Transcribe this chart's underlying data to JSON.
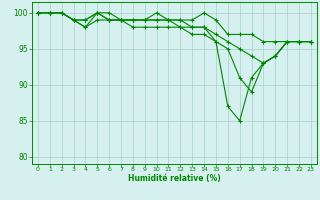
{
  "xlabel": "Humidité relative (%)",
  "background_color": "#d6f0f0",
  "grid_color": "#a8cfc8",
  "line_color": "#008800",
  "spine_color": "#008800",
  "xlim": [
    -0.5,
    23.5
  ],
  "ylim": [
    79,
    101.5
  ],
  "yticks": [
    80,
    85,
    90,
    95,
    100
  ],
  "xticks": [
    0,
    1,
    2,
    3,
    4,
    5,
    6,
    7,
    8,
    9,
    10,
    11,
    12,
    13,
    14,
    15,
    16,
    17,
    18,
    19,
    20,
    21,
    22,
    23
  ],
  "series": [
    [
      100,
      100,
      100,
      99,
      98,
      100,
      100,
      99,
      99,
      99,
      100,
      99,
      99,
      99,
      100,
      99,
      97,
      97,
      97,
      96,
      96,
      96,
      96,
      96
    ],
    [
      100,
      100,
      100,
      99,
      98,
      99,
      99,
      99,
      99,
      99,
      99,
      99,
      99,
      98,
      98,
      97,
      96,
      95,
      94,
      93,
      94,
      96,
      96,
      96
    ],
    [
      100,
      100,
      100,
      99,
      99,
      100,
      99,
      99,
      98,
      98,
      98,
      98,
      98,
      97,
      97,
      96,
      95,
      91,
      89,
      93,
      94,
      96,
      96,
      96
    ],
    [
      100,
      100,
      100,
      99,
      99,
      100,
      99,
      99,
      99,
      99,
      99,
      99,
      98,
      98,
      98,
      96,
      87,
      85,
      91,
      93,
      94,
      96,
      96,
      96
    ]
  ]
}
